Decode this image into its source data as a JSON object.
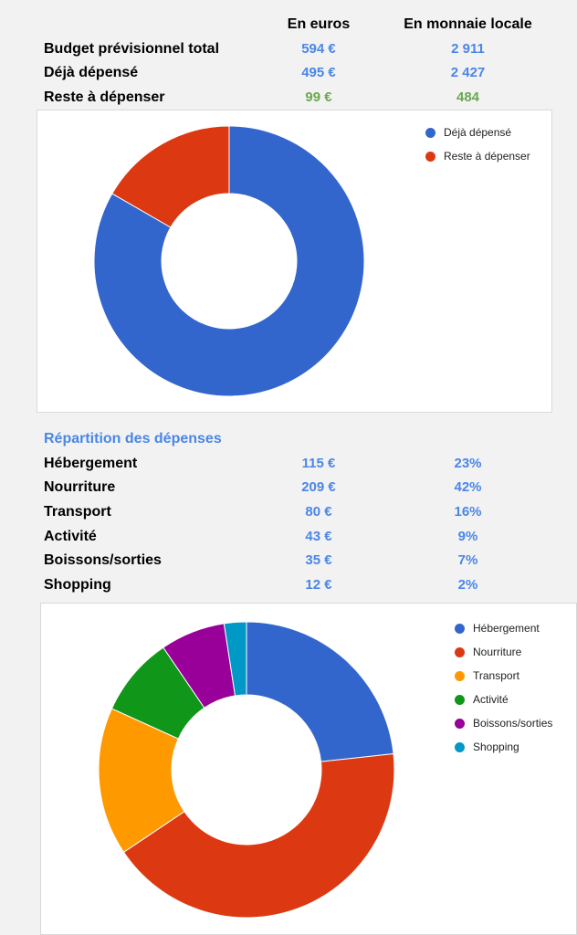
{
  "summary": {
    "headers": [
      "En euros",
      "En monnaie locale"
    ],
    "rows": [
      {
        "label": "Budget prévisionnel total",
        "euros": "594 €",
        "local": "2 911"
      },
      {
        "label": "Déjà dépensé",
        "euros": "495 €",
        "local": "2 427"
      },
      {
        "label": "Reste à dépenser",
        "euros": "99 €",
        "local": "484"
      }
    ]
  },
  "breakdown": {
    "title": "Répartition des dépenses",
    "rows": [
      {
        "label": "Hébergement",
        "euros": "115 €",
        "pct": "23%"
      },
      {
        "label": "Nourriture",
        "euros": "209 €",
        "pct": "42%"
      },
      {
        "label": "Transport",
        "euros": "80 €",
        "pct": "16%"
      },
      {
        "label": "Activité",
        "euros": "43 €",
        "pct": "9%"
      },
      {
        "label": "Boissons/sorties",
        "euros": "35 €",
        "pct": "7%"
      },
      {
        "label": "Shopping",
        "euros": "12 €",
        "pct": "2%"
      }
    ]
  },
  "chart_data": [
    {
      "type": "pie",
      "donut": true,
      "categories": [
        "Déjà dépensé",
        "Reste à dépenser"
      ],
      "values": [
        495,
        99
      ],
      "colors": [
        "#3366cc",
        "#dc3912"
      ],
      "legend": "top-right"
    },
    {
      "type": "pie",
      "donut": true,
      "categories": [
        "Hébergement",
        "Nourriture",
        "Transport",
        "Activité",
        "Boissons/sorties",
        "Shopping"
      ],
      "values": [
        115,
        209,
        80,
        43,
        35,
        12
      ],
      "colors": [
        "#3366cc",
        "#dc3912",
        "#ff9900",
        "#109618",
        "#990099",
        "#0099c6"
      ],
      "legend": "top-right"
    }
  ]
}
